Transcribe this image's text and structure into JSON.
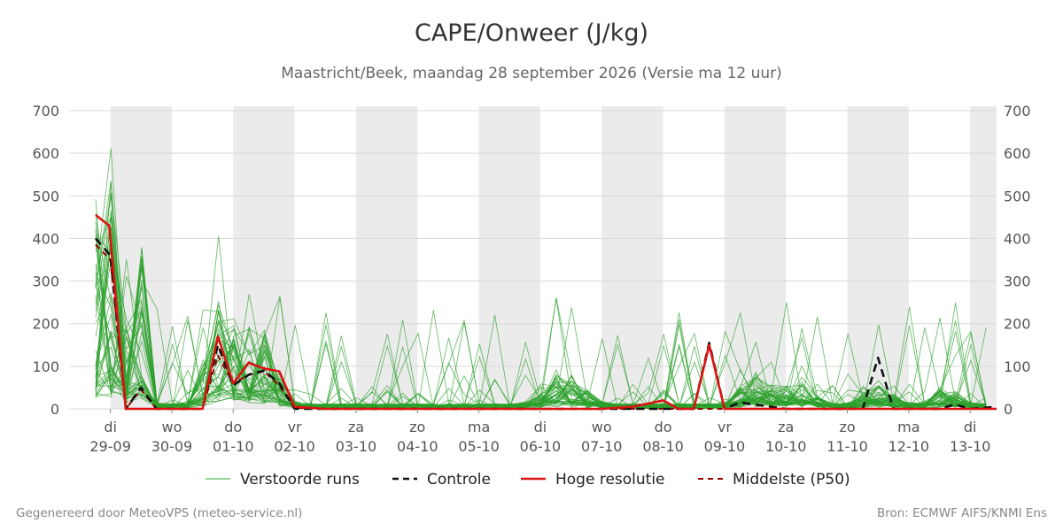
{
  "title": "CAPE/Onweer (J/kg)",
  "subtitle": "Maastricht/Beek, maandag 28 september 2026 (Versie ma 12 uur)",
  "footer": {
    "left": "Gegenereerd door MeteoVPS (meteo-service.nl)",
    "right": "Bron: ECMWF AIFS/KNMI Ens"
  },
  "colors": {
    "ensemble": "#2ca02c",
    "control": "#111111",
    "hires": "#dd1111",
    "median": "#990000",
    "shade": "#ebebeb",
    "grid": "#d9d9d9"
  },
  "chart_data": {
    "type": "line",
    "title": "CAPE/Onweer (J/kg)",
    "ylim": [
      0,
      700
    ],
    "yticks": [
      0,
      100,
      200,
      300,
      400,
      500,
      600,
      700
    ],
    "xlim": [
      -0.24,
      14.43
    ],
    "x_unit": "days from 29-09 00:00",
    "day_labels": [
      {
        "dow": "di",
        "date": "29-09"
      },
      {
        "dow": "wo",
        "date": "30-09"
      },
      {
        "dow": "do",
        "date": "01-10"
      },
      {
        "dow": "vr",
        "date": "02-10"
      },
      {
        "dow": "za",
        "date": "03-10"
      },
      {
        "dow": "zo",
        "date": "04-10"
      },
      {
        "dow": "ma",
        "date": "05-10"
      },
      {
        "dow": "di",
        "date": "06-10"
      },
      {
        "dow": "wo",
        "date": "07-10"
      },
      {
        "dow": "do",
        "date": "08-10"
      },
      {
        "dow": "vr",
        "date": "09-10"
      },
      {
        "dow": "za",
        "date": "10-10"
      },
      {
        "dow": "zo",
        "date": "11-10"
      },
      {
        "dow": "ma",
        "date": "12-10"
      },
      {
        "dow": "di",
        "date": "13-10"
      }
    ],
    "shaded_days": [
      0,
      2,
      4,
      6,
      8,
      10,
      12,
      14
    ],
    "grid": true,
    "legend_position": "bottom",
    "legend": [
      {
        "key": "ensemble",
        "label": "Verstoorde runs"
      },
      {
        "key": "control",
        "label": "Controle"
      },
      {
        "key": "hires",
        "label": "Hoge resolutie"
      },
      {
        "key": "median",
        "label": "Middelste (P50)"
      }
    ],
    "series": [
      {
        "name": "Hoge resolutie",
        "style": "hires",
        "points": [
          [
            -0.24,
            455
          ],
          [
            -0.02,
            430
          ],
          [
            0.25,
            0
          ],
          [
            0.5,
            0
          ],
          [
            1,
            0
          ],
          [
            1.5,
            0
          ],
          [
            1.75,
            170
          ],
          [
            2,
            60
          ],
          [
            2.25,
            108
          ],
          [
            2.5,
            95
          ],
          [
            2.75,
            88
          ],
          [
            3,
            5
          ],
          [
            3.5,
            0
          ],
          [
            5,
            0
          ],
          [
            8,
            0
          ],
          [
            8.5,
            5
          ],
          [
            8.75,
            12
          ],
          [
            9,
            20
          ],
          [
            9.25,
            0
          ],
          [
            9.5,
            0
          ],
          [
            9.75,
            150
          ],
          [
            10,
            0
          ],
          [
            14.43,
            0
          ]
        ]
      },
      {
        "name": "Controle",
        "style": "control",
        "points": [
          [
            -0.24,
            400
          ],
          [
            0,
            360
          ],
          [
            0.25,
            0
          ],
          [
            0.5,
            50
          ],
          [
            0.75,
            0
          ],
          [
            1,
            0
          ],
          [
            1.5,
            0
          ],
          [
            1.75,
            150
          ],
          [
            2,
            55
          ],
          [
            2.25,
            80
          ],
          [
            2.5,
            90
          ],
          [
            2.75,
            60
          ],
          [
            3,
            0
          ],
          [
            5,
            0
          ],
          [
            9.5,
            0
          ],
          [
            9.75,
            155
          ],
          [
            10,
            0
          ],
          [
            10.25,
            15
          ],
          [
            10.5,
            10
          ],
          [
            11,
            0
          ],
          [
            12.25,
            0
          ],
          [
            12.5,
            120
          ],
          [
            12.75,
            0
          ],
          [
            13.5,
            0
          ],
          [
            13.75,
            10
          ],
          [
            14,
            0
          ],
          [
            14.43,
            5
          ]
        ]
      },
      {
        "name": "Middelste (P50)",
        "style": "median",
        "points": [
          [
            -0.24,
            385
          ],
          [
            0,
            350
          ],
          [
            0.25,
            0
          ],
          [
            0.5,
            45
          ],
          [
            0.75,
            0
          ],
          [
            1,
            0
          ],
          [
            1.5,
            0
          ],
          [
            1.75,
            125
          ],
          [
            2,
            60
          ],
          [
            2.25,
            80
          ],
          [
            2.5,
            88
          ],
          [
            2.75,
            55
          ],
          [
            3,
            2
          ],
          [
            3.5,
            0
          ],
          [
            14.43,
            0
          ]
        ]
      }
    ]
  }
}
